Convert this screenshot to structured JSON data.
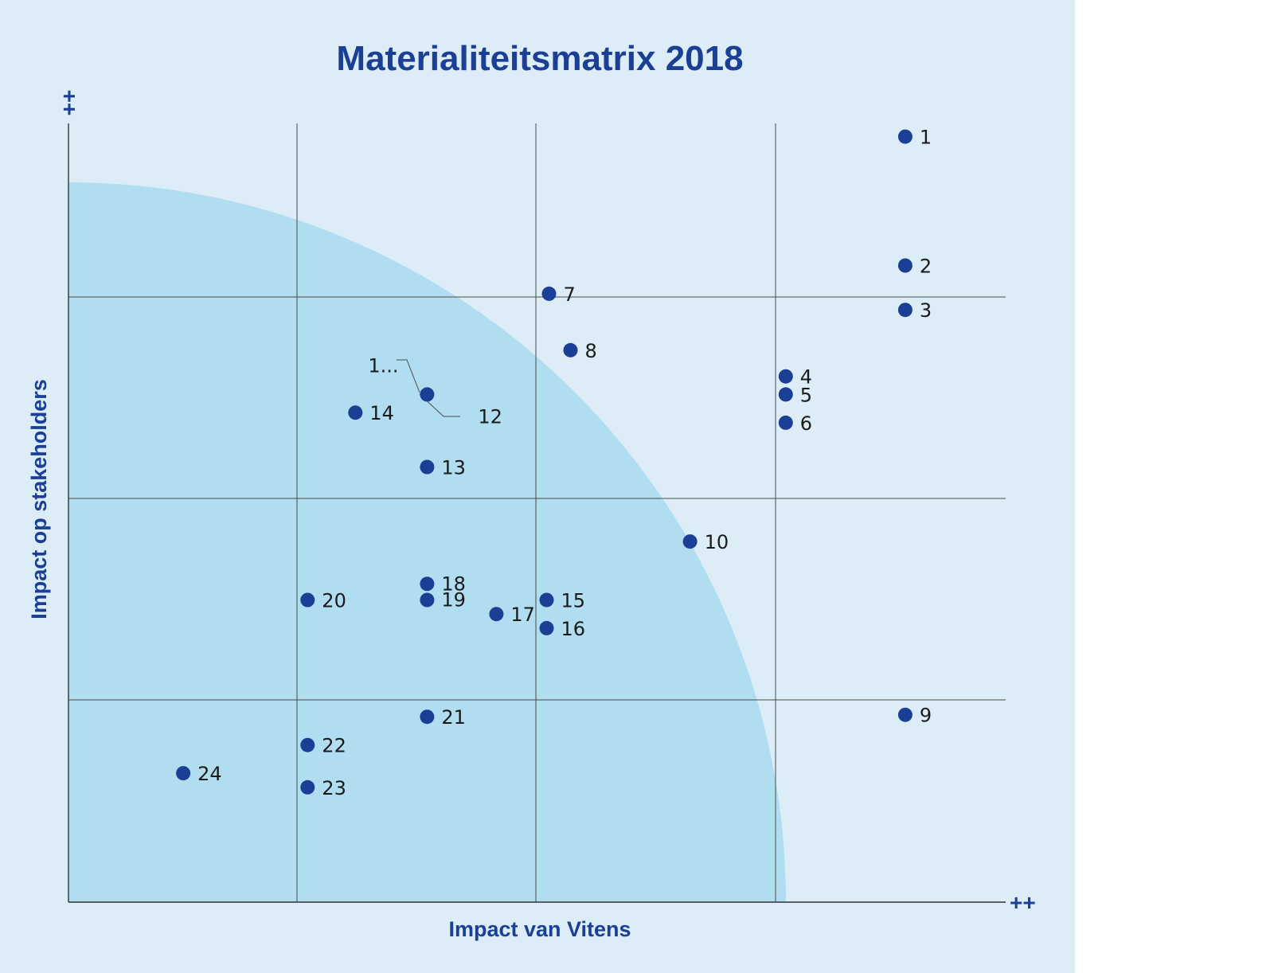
{
  "chart_data": {
    "type": "scatter",
    "title": "Materialiteitsmatrix 2018",
    "xlabel": "Impact van Vitens",
    "ylabel": "Impact op stakeholders",
    "x_axis_end_label": "++",
    "y_axis_end_label": "++",
    "xlim": [
      0,
      4
    ],
    "ylim": [
      0,
      4
    ],
    "grid": true,
    "colors": {
      "point": "#1b3f94",
      "materiality_zone": "#b0ddf0",
      "background": "#dcedf8"
    },
    "points": [
      {
        "label": "1",
        "x": 3.5,
        "y": 3.8
      },
      {
        "label": "2",
        "x": 3.5,
        "y": 3.16
      },
      {
        "label": "3",
        "x": 3.5,
        "y": 2.94
      },
      {
        "label": "4",
        "x": 3.0,
        "y": 2.61
      },
      {
        "label": "5",
        "x": 3.0,
        "y": 2.52
      },
      {
        "label": "6",
        "x": 3.0,
        "y": 2.38
      },
      {
        "label": "7",
        "x": 2.01,
        "y": 3.02
      },
      {
        "label": "8",
        "x": 2.1,
        "y": 2.74
      },
      {
        "label": "9",
        "x": 3.5,
        "y": 0.93
      },
      {
        "label": "10",
        "x": 2.6,
        "y": 1.79
      },
      {
        "label": "1...",
        "x": 1.5,
        "y": 2.52
      },
      {
        "label": "12",
        "x": 1.5,
        "y": 2.52
      },
      {
        "label": "13",
        "x": 1.5,
        "y": 2.16
      },
      {
        "label": "14",
        "x": 1.2,
        "y": 2.43
      },
      {
        "label": "15",
        "x": 2.0,
        "y": 1.5
      },
      {
        "label": "16",
        "x": 2.0,
        "y": 1.36
      },
      {
        "label": "17",
        "x": 1.79,
        "y": 1.43
      },
      {
        "label": "18",
        "x": 1.5,
        "y": 1.58
      },
      {
        "label": "19",
        "x": 1.5,
        "y": 1.5
      },
      {
        "label": "20",
        "x": 1.0,
        "y": 1.5
      },
      {
        "label": "21",
        "x": 1.5,
        "y": 0.92
      },
      {
        "label": "22",
        "x": 1.0,
        "y": 0.78
      },
      {
        "label": "23",
        "x": 1.0,
        "y": 0.57
      },
      {
        "label": "24",
        "x": 0.48,
        "y": 0.64
      }
    ]
  }
}
